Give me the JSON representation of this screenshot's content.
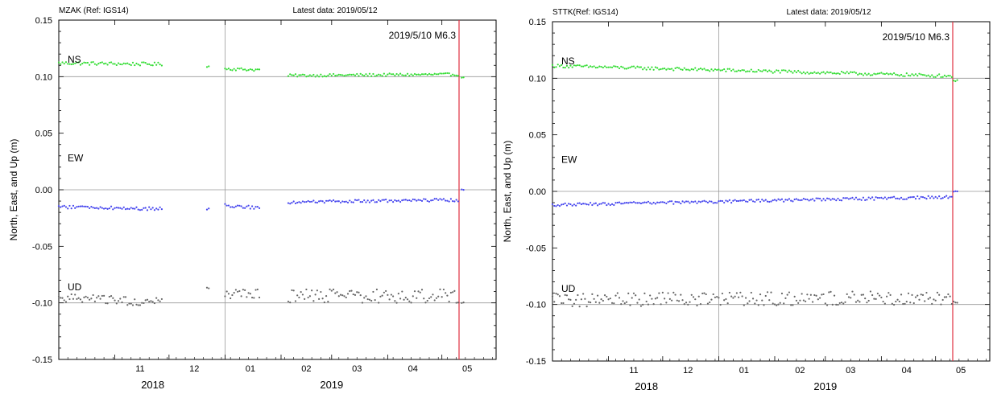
{
  "chart_data": [
    {
      "type": "scatter",
      "station_label": "MZAK (Ref: IGS14)",
      "latest_label": "Latest data: 2019/05/12",
      "event_label": "2019/5/10 M6.3",
      "event_date": "2019-05-10",
      "ylabel": "North, East, and Up (m)",
      "ylim": [
        -0.15,
        0.15
      ],
      "yticks": [
        "-0.15",
        "-0.10",
        "-0.05",
        "0.00",
        "0.05",
        "0.10",
        "0.15"
      ],
      "xlim": [
        "2018-10-01",
        "2019-05-31"
      ],
      "month_labels": [
        "11",
        "12",
        "01",
        "02",
        "03",
        "04",
        "05"
      ],
      "year_labels": [
        "2018",
        "2019"
      ],
      "series": [
        {
          "name": "NS",
          "color": "#33dd33",
          "segments": [
            {
              "start": "2018-10-01",
              "end": "2018-11-27",
              "v0": 0.112,
              "v1": 0.111,
              "noise": 0.0015
            },
            {
              "start": "2018-12-22",
              "end": "2018-12-23",
              "v0": 0.109,
              "v1": 0.109,
              "noise": 0.0005
            },
            {
              "start": "2019-01-01",
              "end": "2019-01-20",
              "v0": 0.107,
              "v1": 0.106,
              "noise": 0.0012
            },
            {
              "start": "2019-02-05",
              "end": "2019-05-10",
              "v0": 0.101,
              "v1": 0.102,
              "noise": 0.0012
            },
            {
              "start": "2019-05-12",
              "end": "2019-05-13",
              "v0": 0.099,
              "v1": 0.099,
              "noise": 0.0004
            }
          ]
        },
        {
          "name": "EW",
          "color": "#4444ee",
          "segments": [
            {
              "start": "2018-10-01",
              "end": "2018-11-27",
              "v0": -0.015,
              "v1": -0.017,
              "noise": 0.0015
            },
            {
              "start": "2018-12-22",
              "end": "2018-12-23",
              "v0": -0.017,
              "v1": -0.017,
              "noise": 0.0005
            },
            {
              "start": "2019-01-01",
              "end": "2019-01-20",
              "v0": -0.014,
              "v1": -0.016,
              "noise": 0.0015
            },
            {
              "start": "2019-02-05",
              "end": "2019-05-10",
              "v0": -0.011,
              "v1": -0.009,
              "noise": 0.0013
            },
            {
              "start": "2019-05-12",
              "end": "2019-05-13",
              "v0": 0.0,
              "v1": 0.0,
              "noise": 0.0003
            }
          ]
        },
        {
          "name": "UD",
          "color": "#666666",
          "segments": [
            {
              "start": "2018-10-01",
              "end": "2018-11-27",
              "v0": -0.096,
              "v1": -0.099,
              "noise": 0.004
            },
            {
              "start": "2018-12-22",
              "end": "2018-12-23",
              "v0": -0.087,
              "v1": -0.087,
              "noise": 0.0005
            },
            {
              "start": "2019-01-01",
              "end": "2019-01-20",
              "v0": -0.093,
              "v1": -0.092,
              "noise": 0.005
            },
            {
              "start": "2019-02-05",
              "end": "2019-05-10",
              "v0": -0.094,
              "v1": -0.094,
              "noise": 0.006
            },
            {
              "start": "2019-05-12",
              "end": "2019-05-13",
              "v0": -0.1,
              "v1": -0.1,
              "noise": 0.0005
            }
          ]
        }
      ]
    },
    {
      "type": "scatter",
      "station_label": "STTK(Ref: IGS14)",
      "latest_label": "Latest data: 2019/05/12",
      "event_label": "2019/5/10 M6.3",
      "event_date": "2019-05-10",
      "ylabel": "North, East, and Up (m)",
      "ylim": [
        -0.15,
        0.15
      ],
      "yticks": [
        "-0.15",
        "-0.10",
        "-0.05",
        "0.00",
        "0.05",
        "0.10",
        "0.15"
      ],
      "xlim": [
        "2018-10-01",
        "2019-05-31"
      ],
      "month_labels": [
        "11",
        "12",
        "01",
        "02",
        "03",
        "04",
        "05"
      ],
      "year_labels": [
        "2018",
        "2019"
      ],
      "series": [
        {
          "name": "NS",
          "color": "#33dd33",
          "segments": [
            {
              "start": "2018-10-01",
              "end": "2019-05-10",
              "v0": 0.111,
              "v1": 0.102,
              "noise": 0.0014
            },
            {
              "start": "2019-05-11",
              "end": "2019-05-13",
              "v0": 0.098,
              "v1": 0.098,
              "noise": 0.0008
            }
          ]
        },
        {
          "name": "EW",
          "color": "#4444ee",
          "segments": [
            {
              "start": "2018-10-01",
              "end": "2019-05-10",
              "v0": -0.012,
              "v1": -0.005,
              "noise": 0.0013
            },
            {
              "start": "2019-05-11",
              "end": "2019-05-13",
              "v0": 0.0,
              "v1": 0.0,
              "noise": 0.0003
            }
          ]
        },
        {
          "name": "UD",
          "color": "#666666",
          "segments": [
            {
              "start": "2018-10-01",
              "end": "2019-05-10",
              "v0": -0.096,
              "v1": -0.094,
              "noise": 0.006
            },
            {
              "start": "2019-05-11",
              "end": "2019-05-13",
              "v0": -0.098,
              "v1": -0.098,
              "noise": 0.0008
            }
          ]
        }
      ]
    }
  ]
}
